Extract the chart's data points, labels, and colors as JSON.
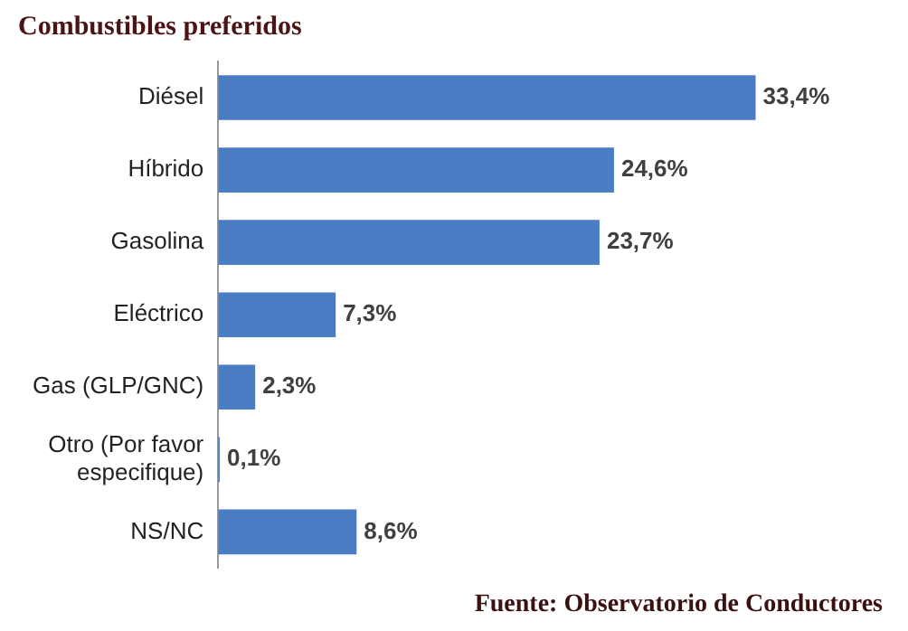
{
  "chart_data": {
    "type": "bar",
    "orientation": "horizontal",
    "title": "Combustibles preferidos",
    "categories": [
      "Diésel",
      "Híbrido",
      "Gasolina",
      "Eléctrico",
      "Gas (GLP/GNC)",
      "Otro (Por favor especifique)",
      "NS/NC"
    ],
    "values": [
      33.4,
      24.6,
      23.7,
      7.3,
      2.3,
      0.1,
      8.6
    ],
    "value_labels": [
      "33,4%",
      "24,6%",
      "23,7%",
      "7,3%",
      "2,3%",
      "0,1%",
      "8,6%"
    ],
    "color": "#4a7dc4",
    "legend": false,
    "annotations": [
      "Fuente: Observatorio de Conductores"
    ]
  }
}
